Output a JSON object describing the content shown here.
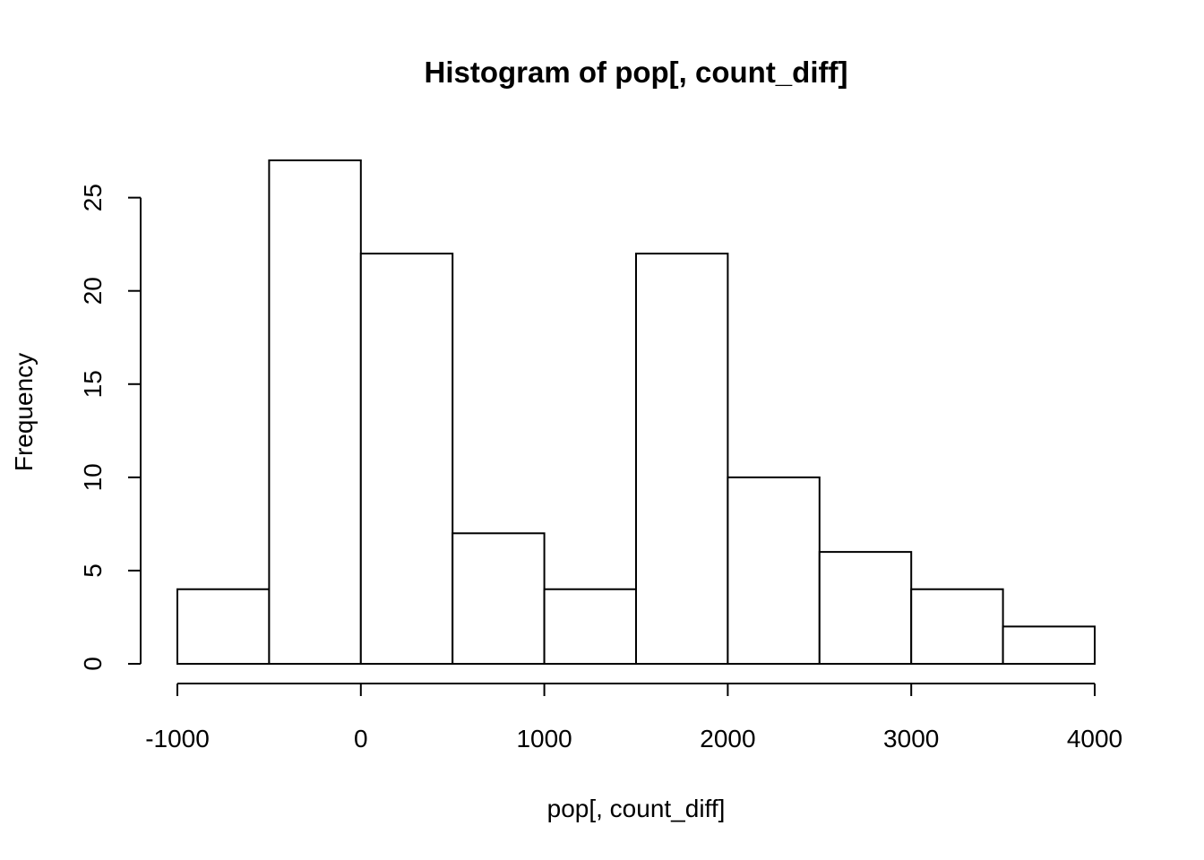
{
  "chart_data": {
    "type": "bar",
    "subtype": "histogram",
    "title": "Histogram of pop[, count_diff]",
    "xlabel": "pop[, count_diff]",
    "ylabel": "Frequency",
    "bins": [
      {
        "from": -1000,
        "to": -500,
        "count": 4
      },
      {
        "from": -500,
        "to": 0,
        "count": 27
      },
      {
        "from": 0,
        "to": 500,
        "count": 22
      },
      {
        "from": 500,
        "to": 1000,
        "count": 7
      },
      {
        "from": 1000,
        "to": 1500,
        "count": 4
      },
      {
        "from": 1500,
        "to": 2000,
        "count": 22
      },
      {
        "from": 2000,
        "to": 2500,
        "count": 10
      },
      {
        "from": 2500,
        "to": 3000,
        "count": 6
      },
      {
        "from": 3000,
        "to": 3500,
        "count": 4
      },
      {
        "from": 3500,
        "to": 4000,
        "count": 2
      }
    ],
    "xticks": [
      -1000,
      0,
      1000,
      2000,
      3000,
      4000
    ],
    "xtick_labels": [
      "-1000",
      "0",
      "1000",
      "2000",
      "3000",
      "4000"
    ],
    "yticks": [
      0,
      5,
      10,
      15,
      20,
      25
    ],
    "ytick_labels": [
      "0",
      "5",
      "10",
      "15",
      "20",
      "25"
    ],
    "xlim": [
      -1000,
      4000
    ],
    "ylim": [
      0,
      27
    ],
    "bar_fill": "#ffffff",
    "bar_stroke": "#000000",
    "grid": false,
    "legend": "none"
  }
}
